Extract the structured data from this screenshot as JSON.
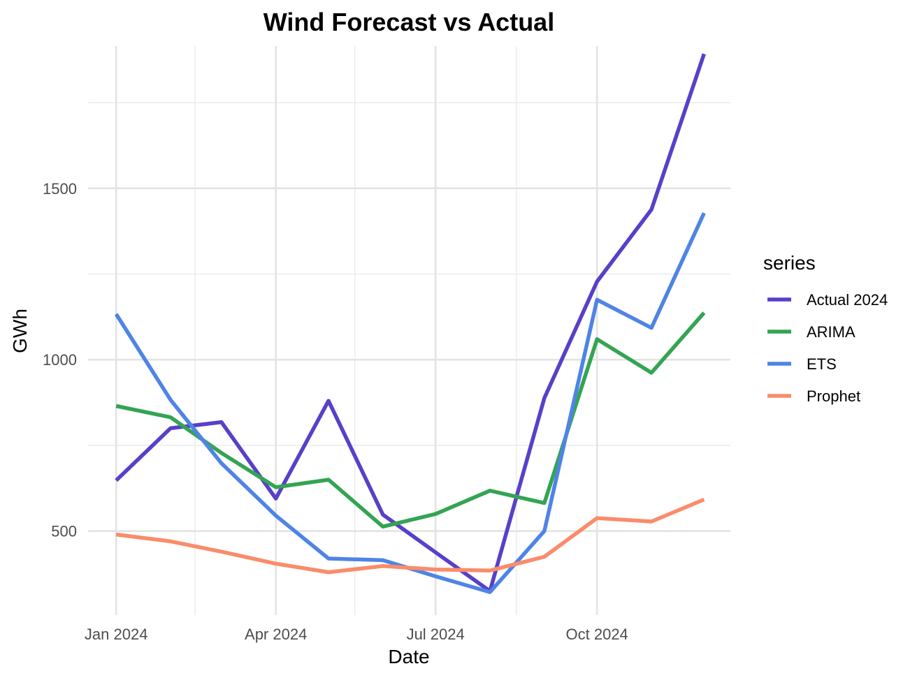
{
  "chart_data": {
    "type": "line",
    "title": "Wind Forecast vs Actual",
    "xlabel": "Date",
    "ylabel": "GWh",
    "x": [
      "2024-01-01",
      "2024-02-01",
      "2024-03-01",
      "2024-04-01",
      "2024-05-01",
      "2024-06-01",
      "2024-07-01",
      "2024-08-01",
      "2024-09-01",
      "2024-10-01",
      "2024-11-01",
      "2024-12-01"
    ],
    "x_ticks": [
      {
        "date": "2024-01-01",
        "label": "Jan 2024"
      },
      {
        "date": "2024-04-01",
        "label": "Apr 2024"
      },
      {
        "date": "2024-07-01",
        "label": "Jul 2024"
      },
      {
        "date": "2024-10-01",
        "label": "Oct 2024"
      }
    ],
    "y_ticks": [
      500,
      1000,
      1500
    ],
    "ylim": [
      255,
      1915
    ],
    "xlim": [
      "2023-12-16",
      "2024-12-16"
    ],
    "grid": true,
    "legend": {
      "title": "series",
      "position": "right"
    },
    "series": [
      {
        "name": "Actual 2024",
        "color": "#5840c8",
        "values": [
          648,
          800,
          818,
          595,
          880,
          548,
          438,
          325,
          888,
          1228,
          1438,
          1892
        ]
      },
      {
        "name": "ARIMA",
        "color": "#34a453",
        "values": [
          865,
          832,
          728,
          628,
          650,
          513,
          550,
          618,
          582,
          1060,
          962,
          1137
        ]
      },
      {
        "name": "ETS",
        "color": "#4f84e6",
        "values": [
          1133,
          883,
          698,
          545,
          420,
          415,
          368,
          322,
          500,
          1175,
          1093,
          1428
        ]
      },
      {
        "name": "Prophet",
        "color": "#fa8c6a",
        "values": [
          490,
          470,
          440,
          405,
          380,
          398,
          388,
          385,
          425,
          538,
          528,
          592
        ]
      }
    ]
  }
}
